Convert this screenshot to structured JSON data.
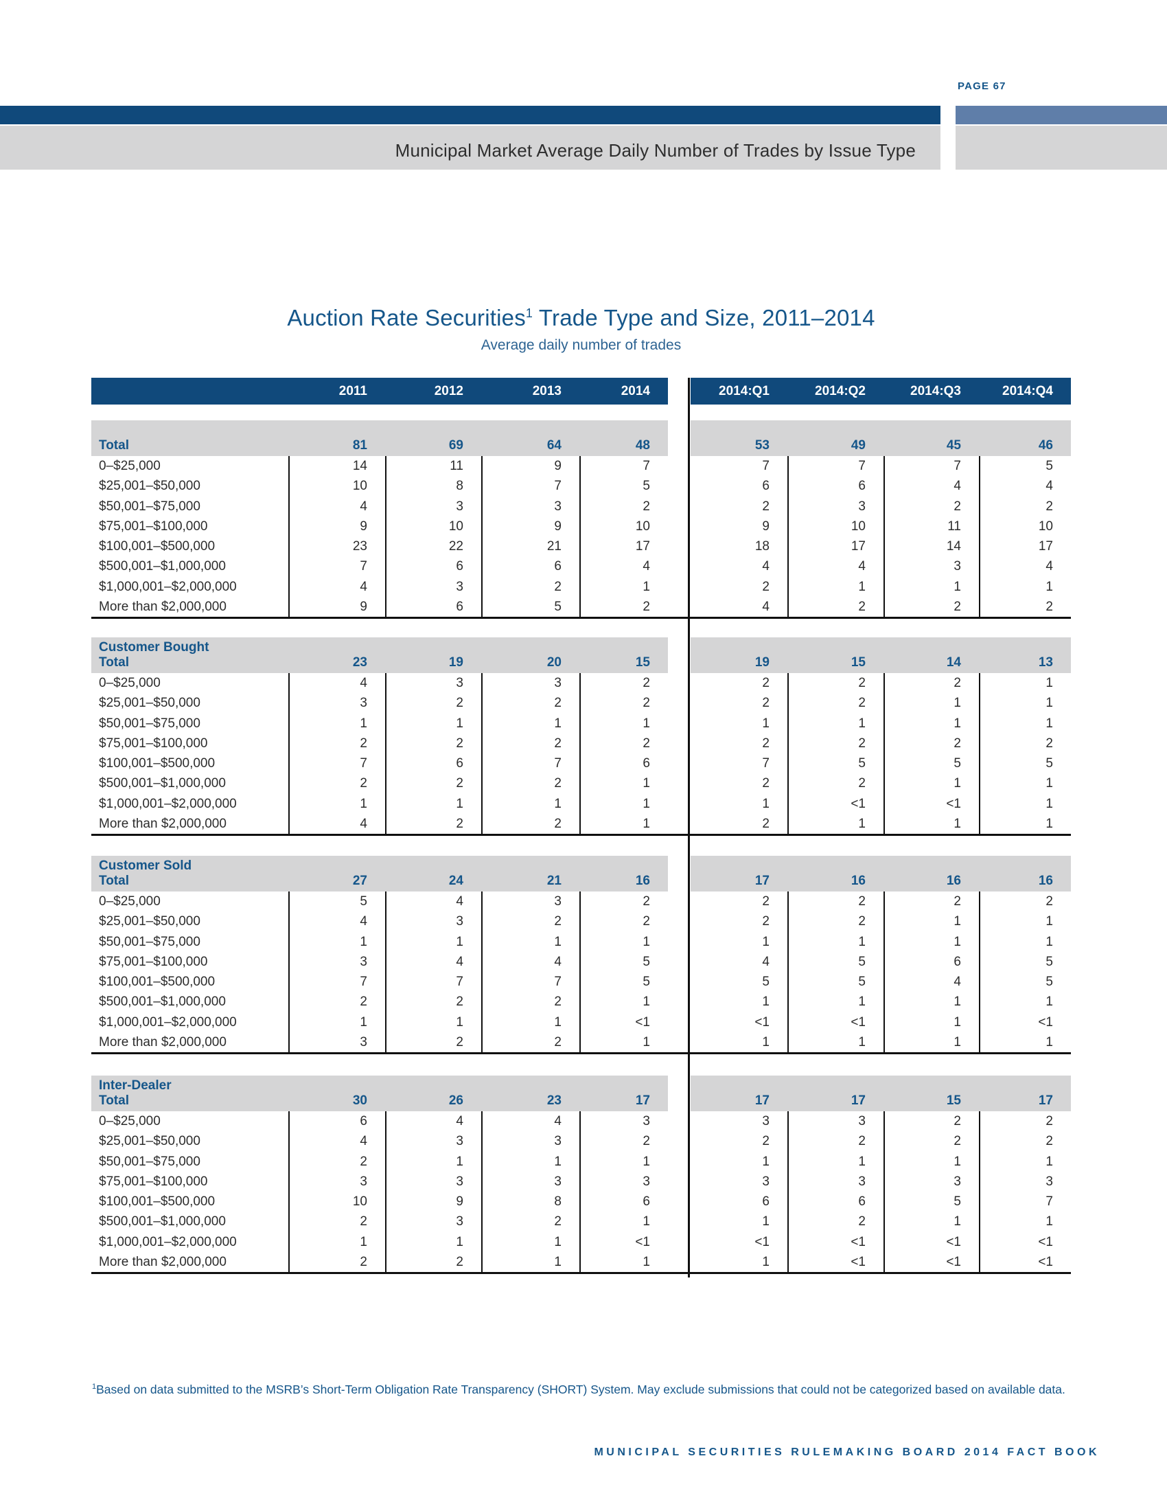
{
  "colors": {
    "navy_bar": "#10497B",
    "accent_bar": "#5F7EA9",
    "band_gray": "#D5D5D6",
    "navy_text": "#15568A",
    "ink": "#2C2C2C",
    "line": "#101010"
  },
  "header": {
    "page_label": "PAGE 67",
    "banner_title": "Municipal Market Average Daily Number of Trades by Issue Type"
  },
  "table": {
    "title_main": "Auction Rate Securities",
    "title_sup": "1",
    "title_rest": " Trade Type and Size, 2011–2014",
    "subtitle": "Average daily number of trades",
    "year_columns": [
      "2011",
      "2012",
      "2013",
      "2014"
    ],
    "quarter_columns": [
      "2014:Q1",
      "2014:Q2",
      "2014:Q3",
      "2014:Q4"
    ],
    "sections": [
      {
        "name": "",
        "total_label": "Total",
        "total_years": [
          "81",
          "69",
          "64",
          "48"
        ],
        "total_quarters": [
          "53",
          "49",
          "45",
          "46"
        ],
        "rows": [
          {
            "label": "0–$25,000",
            "years": [
              "14",
              "11",
              "9",
              "7"
            ],
            "quarters": [
              "7",
              "7",
              "7",
              "5"
            ]
          },
          {
            "label": "$25,001–$50,000",
            "years": [
              "10",
              "8",
              "7",
              "5"
            ],
            "quarters": [
              "6",
              "6",
              "4",
              "4"
            ]
          },
          {
            "label": "$50,001–$75,000",
            "years": [
              "4",
              "3",
              "3",
              "2"
            ],
            "quarters": [
              "2",
              "3",
              "2",
              "2"
            ]
          },
          {
            "label": "$75,001–$100,000",
            "years": [
              "9",
              "10",
              "9",
              "10"
            ],
            "quarters": [
              "9",
              "10",
              "11",
              "10"
            ]
          },
          {
            "label": "$100,001–$500,000",
            "years": [
              "23",
              "22",
              "21",
              "17"
            ],
            "quarters": [
              "18",
              "17",
              "14",
              "17"
            ]
          },
          {
            "label": "$500,001–$1,000,000",
            "years": [
              "7",
              "6",
              "6",
              "4"
            ],
            "quarters": [
              "4",
              "4",
              "3",
              "4"
            ]
          },
          {
            "label": "$1,000,001–$2,000,000",
            "years": [
              "4",
              "3",
              "2",
              "1"
            ],
            "quarters": [
              "2",
              "1",
              "1",
              "1"
            ]
          },
          {
            "label": "More than $2,000,000",
            "years": [
              "9",
              "6",
              "5",
              "2"
            ],
            "quarters": [
              "4",
              "2",
              "2",
              "2"
            ]
          }
        ]
      },
      {
        "name": "Customer Bought",
        "total_label": "Total",
        "total_years": [
          "23",
          "19",
          "20",
          "15"
        ],
        "total_quarters": [
          "19",
          "15",
          "14",
          "13"
        ],
        "rows": [
          {
            "label": "0–$25,000",
            "years": [
              "4",
              "3",
              "3",
              "2"
            ],
            "quarters": [
              "2",
              "2",
              "2",
              "1"
            ]
          },
          {
            "label": "$25,001–$50,000",
            "years": [
              "3",
              "2",
              "2",
              "2"
            ],
            "quarters": [
              "2",
              "2",
              "1",
              "1"
            ]
          },
          {
            "label": "$50,001–$75,000",
            "years": [
              "1",
              "1",
              "1",
              "1"
            ],
            "quarters": [
              "1",
              "1",
              "1",
              "1"
            ]
          },
          {
            "label": "$75,001–$100,000",
            "years": [
              "2",
              "2",
              "2",
              "2"
            ],
            "quarters": [
              "2",
              "2",
              "2",
              "2"
            ]
          },
          {
            "label": "$100,001–$500,000",
            "years": [
              "7",
              "6",
              "7",
              "6"
            ],
            "quarters": [
              "7",
              "5",
              "5",
              "5"
            ]
          },
          {
            "label": "$500,001–$1,000,000",
            "years": [
              "2",
              "2",
              "2",
              "1"
            ],
            "quarters": [
              "2",
              "2",
              "1",
              "1"
            ]
          },
          {
            "label": "$1,000,001–$2,000,000",
            "years": [
              "1",
              "1",
              "1",
              "1"
            ],
            "quarters": [
              "1",
              "<1",
              "<1",
              "1"
            ]
          },
          {
            "label": "More than $2,000,000",
            "years": [
              "4",
              "2",
              "2",
              "1"
            ],
            "quarters": [
              "2",
              "1",
              "1",
              "1"
            ]
          }
        ]
      },
      {
        "name": "Customer Sold",
        "total_label": "Total",
        "total_years": [
          "27",
          "24",
          "21",
          "16"
        ],
        "total_quarters": [
          "17",
          "16",
          "16",
          "16"
        ],
        "rows": [
          {
            "label": "0–$25,000",
            "years": [
              "5",
              "4",
              "3",
              "2"
            ],
            "quarters": [
              "2",
              "2",
              "2",
              "2"
            ]
          },
          {
            "label": "$25,001–$50,000",
            "years": [
              "4",
              "3",
              "2",
              "2"
            ],
            "quarters": [
              "2",
              "2",
              "1",
              "1"
            ]
          },
          {
            "label": "$50,001–$75,000",
            "years": [
              "1",
              "1",
              "1",
              "1"
            ],
            "quarters": [
              "1",
              "1",
              "1",
              "1"
            ]
          },
          {
            "label": "$75,001–$100,000",
            "years": [
              "3",
              "4",
              "4",
              "5"
            ],
            "quarters": [
              "4",
              "5",
              "6",
              "5"
            ]
          },
          {
            "label": "$100,001–$500,000",
            "years": [
              "7",
              "7",
              "7",
              "5"
            ],
            "quarters": [
              "5",
              "5",
              "4",
              "5"
            ]
          },
          {
            "label": "$500,001–$1,000,000",
            "years": [
              "2",
              "2",
              "2",
              "1"
            ],
            "quarters": [
              "1",
              "1",
              "1",
              "1"
            ]
          },
          {
            "label": "$1,000,001–$2,000,000",
            "years": [
              "1",
              "1",
              "1",
              "<1"
            ],
            "quarters": [
              "<1",
              "<1",
              "1",
              "<1"
            ]
          },
          {
            "label": "More than $2,000,000",
            "years": [
              "3",
              "2",
              "2",
              "1"
            ],
            "quarters": [
              "1",
              "1",
              "1",
              "1"
            ]
          }
        ]
      },
      {
        "name": "Inter-Dealer",
        "total_label": "Total",
        "total_years": [
          "30",
          "26",
          "23",
          "17"
        ],
        "total_quarters": [
          "17",
          "17",
          "15",
          "17"
        ],
        "rows": [
          {
            "label": "0–$25,000",
            "years": [
              "6",
              "4",
              "4",
              "3"
            ],
            "quarters": [
              "3",
              "3",
              "2",
              "2"
            ]
          },
          {
            "label": "$25,001–$50,000",
            "years": [
              "4",
              "3",
              "3",
              "2"
            ],
            "quarters": [
              "2",
              "2",
              "2",
              "2"
            ]
          },
          {
            "label": "$50,001–$75,000",
            "years": [
              "2",
              "1",
              "1",
              "1"
            ],
            "quarters": [
              "1",
              "1",
              "1",
              "1"
            ]
          },
          {
            "label": "$75,001–$100,000",
            "years": [
              "3",
              "3",
              "3",
              "3"
            ],
            "quarters": [
              "3",
              "3",
              "3",
              "3"
            ]
          },
          {
            "label": "$100,001–$500,000",
            "years": [
              "10",
              "9",
              "8",
              "6"
            ],
            "quarters": [
              "6",
              "6",
              "5",
              "7"
            ]
          },
          {
            "label": "$500,001–$1,000,000",
            "years": [
              "2",
              "3",
              "2",
              "1"
            ],
            "quarters": [
              "1",
              "2",
              "1",
              "1"
            ]
          },
          {
            "label": "$1,000,001–$2,000,000",
            "years": [
              "1",
              "1",
              "1",
              "<1"
            ],
            "quarters": [
              "<1",
              "<1",
              "<1",
              "<1"
            ]
          },
          {
            "label": "More than $2,000,000",
            "years": [
              "2",
              "2",
              "1",
              "1"
            ],
            "quarters": [
              "1",
              "<1",
              "<1",
              "<1"
            ]
          }
        ]
      }
    ]
  },
  "footnote": {
    "marker": "1",
    "text": "Based on data submitted to the MSRB’s Short-Term Obligation Rate Transparency (SHORT) System. May exclude submissions that could not be categorized based on available data."
  },
  "footer": {
    "text": "MUNICIPAL SECURITIES RULEMAKING BOARD 2014 FACT BOOK"
  }
}
